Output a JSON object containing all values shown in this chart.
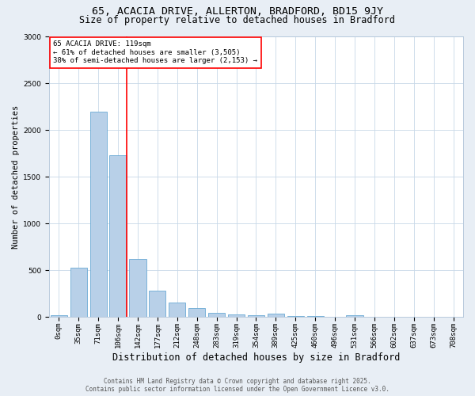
{
  "title_line1": "65, ACACIA DRIVE, ALLERTON, BRADFORD, BD15 9JY",
  "title_line2": "Size of property relative to detached houses in Bradford",
  "xlabel": "Distribution of detached houses by size in Bradford",
  "ylabel": "Number of detached properties",
  "categories": [
    "0sqm",
    "35sqm",
    "71sqm",
    "106sqm",
    "142sqm",
    "177sqm",
    "212sqm",
    "248sqm",
    "283sqm",
    "319sqm",
    "354sqm",
    "389sqm",
    "425sqm",
    "460sqm",
    "496sqm",
    "531sqm",
    "566sqm",
    "602sqm",
    "637sqm",
    "673sqm",
    "708sqm"
  ],
  "values": [
    20,
    530,
    2200,
    1730,
    620,
    280,
    155,
    100,
    45,
    30,
    20,
    35,
    15,
    10,
    5,
    18,
    5,
    5,
    2,
    2,
    2
  ],
  "bar_color": "#b8d0e8",
  "bar_edgecolor": "#6aaad4",
  "vline_x": 3.45,
  "annotation_text": "65 ACACIA DRIVE: 119sqm\n← 61% of detached houses are smaller (3,505)\n38% of semi-detached houses are larger (2,153) →",
  "annotation_box_edgecolor": "red",
  "vline_color": "red",
  "ylim": [
    0,
    3000
  ],
  "yticks": [
    0,
    500,
    1000,
    1500,
    2000,
    2500,
    3000
  ],
  "footer_line1": "Contains HM Land Registry data © Crown copyright and database right 2025.",
  "footer_line2": "Contains public sector information licensed under the Open Government Licence v3.0.",
  "bg_color": "#e8eef5",
  "plot_bg_color": "#ffffff",
  "title_fontsize": 9.5,
  "subtitle_fontsize": 8.5,
  "xlabel_fontsize": 8.5,
  "ylabel_fontsize": 7.5,
  "tick_fontsize": 6.5,
  "annot_fontsize": 6.5,
  "footer_fontsize": 5.5
}
